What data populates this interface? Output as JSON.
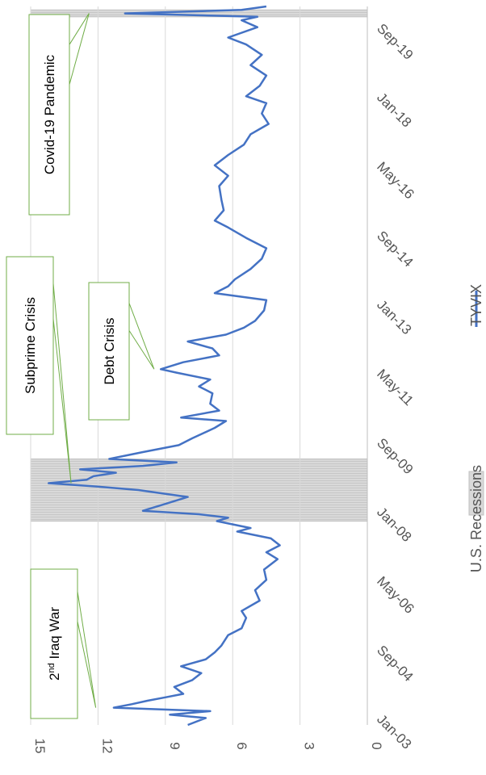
{
  "chart_data": {
    "type": "line",
    "orientation": "rotated-90-clockwise",
    "series": [
      {
        "name": "TYVIX",
        "color": "#4472c4",
        "points": [
          [
            "2003-01",
            8.0
          ],
          [
            "2003-03",
            7.2
          ],
          [
            "2003-04",
            8.8
          ],
          [
            "2003-05",
            7.0
          ],
          [
            "2003-06",
            11.3
          ],
          [
            "2003-07",
            10.5
          ],
          [
            "2003-08",
            9.8
          ],
          [
            "2003-09",
            9.0
          ],
          [
            "2003-10",
            8.2
          ],
          [
            "2003-12",
            8.6
          ],
          [
            "2004-02",
            7.8
          ],
          [
            "2004-04",
            7.4
          ],
          [
            "2004-06",
            8.3
          ],
          [
            "2004-08",
            7.2
          ],
          [
            "2004-10",
            6.8
          ],
          [
            "2004-12",
            6.5
          ],
          [
            "2005-03",
            6.2
          ],
          [
            "2005-05",
            5.6
          ],
          [
            "2005-08",
            5.4
          ],
          [
            "2005-10",
            5.6
          ],
          [
            "2006-01",
            4.8
          ],
          [
            "2006-04",
            5.0
          ],
          [
            "2006-07",
            4.5
          ],
          [
            "2006-10",
            4.6
          ],
          [
            "2007-01",
            4.0
          ],
          [
            "2007-03",
            4.5
          ],
          [
            "2007-05",
            3.9
          ],
          [
            "2007-07",
            4.3
          ],
          [
            "2007-09",
            5.8
          ],
          [
            "2007-10",
            5.2
          ],
          [
            "2007-12",
            6.7
          ],
          [
            "2008-01",
            6.2
          ],
          [
            "2008-02",
            7.5
          ],
          [
            "2008-03",
            10.0
          ],
          [
            "2008-05",
            9.0
          ],
          [
            "2008-07",
            8.0
          ],
          [
            "2008-09",
            10.2
          ],
          [
            "2008-10",
            12.0
          ],
          [
            "2008-11",
            14.2
          ],
          [
            "2008-12",
            12.5
          ],
          [
            "2009-01",
            12.2
          ],
          [
            "2009-02",
            11.2
          ],
          [
            "2009-03",
            12.8
          ],
          [
            "2009-04",
            10.0
          ],
          [
            "2009-05",
            8.5
          ],
          [
            "2009-06",
            11.5
          ],
          [
            "2009-08",
            10.0
          ],
          [
            "2009-10",
            8.4
          ],
          [
            "2009-12",
            7.8
          ],
          [
            "2010-03",
            6.8
          ],
          [
            "2010-05",
            6.3
          ],
          [
            "2010-06",
            8.3
          ],
          [
            "2010-08",
            6.6
          ],
          [
            "2010-10",
            7.0
          ],
          [
            "2011-01",
            6.9
          ],
          [
            "2011-03",
            7.5
          ],
          [
            "2011-05",
            7.0
          ],
          [
            "2011-07",
            8.5
          ],
          [
            "2011-08",
            9.2
          ],
          [
            "2011-10",
            8.2
          ],
          [
            "2011-12",
            6.6
          ],
          [
            "2012-02",
            6.9
          ],
          [
            "2012-04",
            8.0
          ],
          [
            "2012-06",
            6.3
          ],
          [
            "2012-08",
            5.5
          ],
          [
            "2012-10",
            5.0
          ],
          [
            "2013-01",
            4.6
          ],
          [
            "2013-04",
            4.5
          ],
          [
            "2013-06",
            6.8
          ],
          [
            "2013-08",
            6.2
          ],
          [
            "2013-10",
            5.9
          ],
          [
            "2014-01",
            5.2
          ],
          [
            "2014-04",
            4.7
          ],
          [
            "2014-07",
            4.5
          ],
          [
            "2014-10",
            5.4
          ],
          [
            "2015-01",
            6.2
          ],
          [
            "2015-03",
            6.8
          ],
          [
            "2015-06",
            6.4
          ],
          [
            "2015-09",
            6.5
          ],
          [
            "2016-01",
            6.6
          ],
          [
            "2016-04",
            6.2
          ],
          [
            "2016-07",
            6.8
          ],
          [
            "2016-10",
            6.2
          ],
          [
            "2017-01",
            5.5
          ],
          [
            "2017-04",
            5.2
          ],
          [
            "2017-07",
            4.4
          ],
          [
            "2017-10",
            4.7
          ],
          [
            "2018-01",
            4.5
          ],
          [
            "2018-03",
            5.4
          ],
          [
            "2018-06",
            4.8
          ],
          [
            "2018-09",
            4.5
          ],
          [
            "2018-12",
            5.2
          ],
          [
            "2019-03",
            4.7
          ],
          [
            "2019-06",
            5.4
          ],
          [
            "2019-08",
            6.2
          ],
          [
            "2019-11",
            4.9
          ],
          [
            "2020-01",
            5.6
          ],
          [
            "2020-02",
            4.9
          ],
          [
            "2020-03",
            10.8
          ],
          [
            "2020-04",
            5.6
          ],
          [
            "2020-05",
            4.5
          ]
        ]
      }
    ],
    "recessions": [
      {
        "start": "2007-12",
        "end": "2009-06"
      },
      {
        "start": "2020-02",
        "end": "2020-04"
      }
    ],
    "x_axis": {
      "type": "date",
      "range": [
        "2003-01",
        "2020-05"
      ],
      "ticks": [
        {
          "date": "2003-01",
          "label": "Jan-03"
        },
        {
          "date": "2004-09",
          "label": "Sep-04"
        },
        {
          "date": "2006-05",
          "label": "May-06"
        },
        {
          "date": "2008-01",
          "label": "Jan-08"
        },
        {
          "date": "2009-09",
          "label": "Sep-09"
        },
        {
          "date": "2011-05",
          "label": "May-11"
        },
        {
          "date": "2013-01",
          "label": "Jan-13"
        },
        {
          "date": "2014-09",
          "label": "Sep-14"
        },
        {
          "date": "2016-05",
          "label": "May-16"
        },
        {
          "date": "2018-01",
          "label": "Jan-18"
        },
        {
          "date": "2019-09",
          "label": "Sep-19"
        }
      ]
    },
    "y_axis": {
      "range": [
        0,
        15
      ],
      "ticks": [
        "0",
        "3",
        "6",
        "9",
        "12",
        "15"
      ]
    },
    "grid": true,
    "legend": {
      "position": "bottom",
      "items": [
        {
          "label": "U.S. Recessions",
          "kind": "box",
          "color": "#d9d9d9"
        },
        {
          "label": "TYVIX",
          "kind": "line",
          "color": "#4472c4"
        }
      ]
    },
    "annotations": [
      {
        "id": "iraq",
        "text_prefix": "2",
        "text_sup": "nd",
        "text_rest": " Iraq War",
        "target": "2003-06"
      },
      {
        "id": "subprime",
        "text": "Subprime Crisis",
        "target": "2008-11"
      },
      {
        "id": "debt",
        "text": "Debt Crisis",
        "target": "2011-08"
      },
      {
        "id": "covid",
        "text": "Covid-19 Pandemic",
        "target": "2020-03"
      }
    ]
  }
}
